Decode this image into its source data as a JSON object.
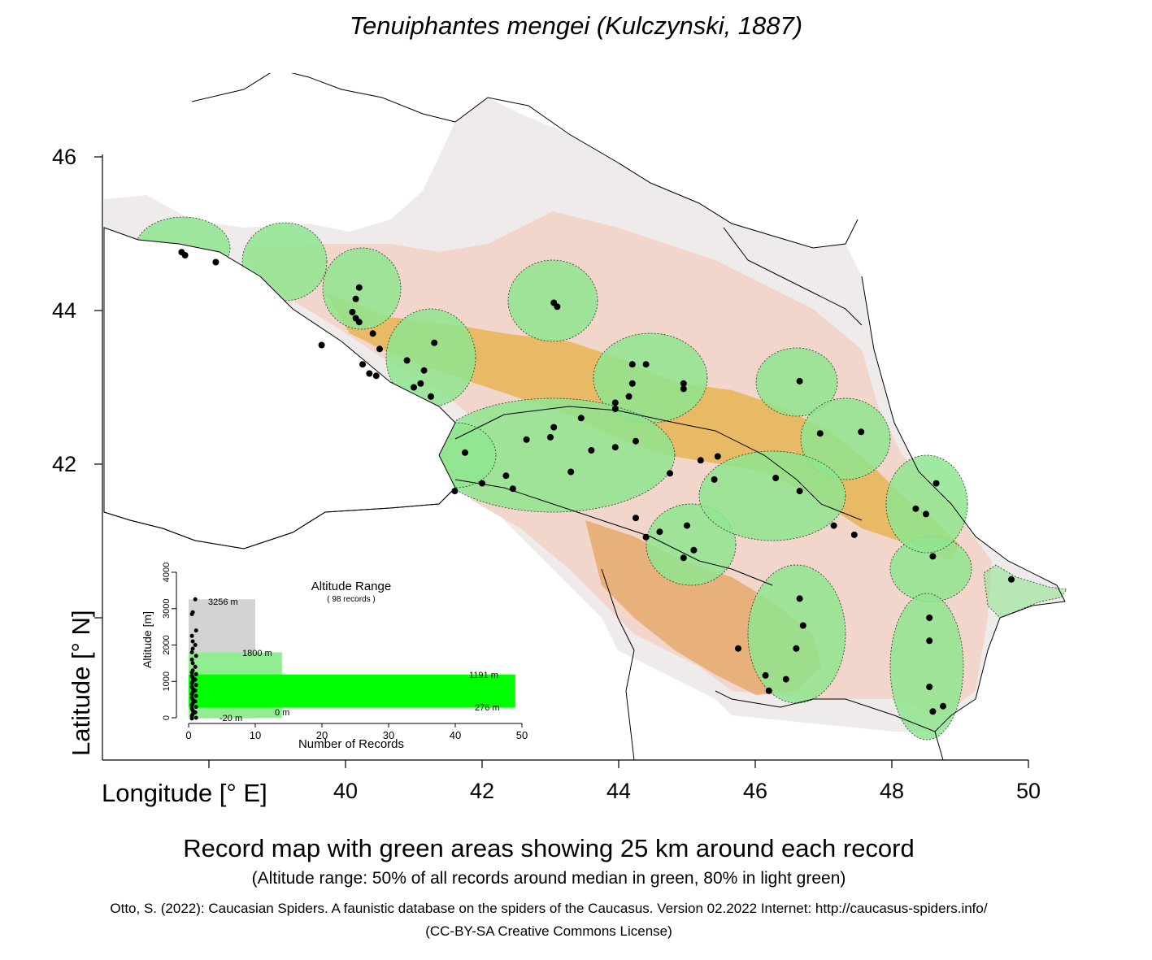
{
  "title": "Tenuiphantes mengei (Kulczynski, 1887)",
  "axes": {
    "xlabel": "Longitude [° E]",
    "ylabel": "Latitude [° N]",
    "xticks": [
      "40",
      "42",
      "44",
      "46",
      "48",
      "50"
    ],
    "yticks": [
      "46",
      "44",
      "42"
    ]
  },
  "inset": {
    "title": "Altitude Range",
    "record_count": "( 98 records )",
    "ylabel": "Altitude [m]",
    "xlabel": "Number of Records",
    "yticks": [
      "0",
      "1000",
      "2000",
      "3000",
      "4000"
    ],
    "xticks": [
      "0",
      "10",
      "20",
      "30",
      "40",
      "50"
    ],
    "labels": {
      "max": "3256  m",
      "p80_high": "1800  m",
      "p50_high": "1191  m",
      "p50_low": "276  m",
      "p80_low": "0  m",
      "min": "-20  m"
    },
    "colors": {
      "range": "#d3d3d3",
      "p80": "#90ee90",
      "p50": "#00ff00"
    }
  },
  "caption": "Record map with green areas showing 25 km around each record",
  "subcaption": "(Altitude range: 50% of all records around median in green, 80% in light green)",
  "citation": "Otto, S. (2022): Caucasian Spiders. A faunistic database on the spiders of the Caucasus. Version 02.2022 Internet: http://caucasus-spiders.info/",
  "license": "(CC-BY-SA Creative Commons License)",
  "chart_data": [
    {
      "type": "scatter",
      "title": "Tenuiphantes mengei (Kulczynski, 1887)",
      "xlabel": "Longitude [° E]",
      "ylabel": "Latitude [° N]",
      "xlim": [
        36.4,
        50.4
      ],
      "ylim": [
        38.2,
        46.9
      ],
      "series": [
        {
          "values": [
            [
              37.6,
              44.76
            ],
            [
              37.65,
              44.72
            ],
            [
              38.1,
              44.63
            ],
            [
              40.2,
              44.3
            ],
            [
              40.15,
              44.15
            ],
            [
              40.1,
              43.98
            ],
            [
              40.15,
              43.9
            ],
            [
              40.2,
              43.85
            ],
            [
              40.4,
              43.7
            ],
            [
              40.5,
              43.5
            ],
            [
              39.65,
              43.55
            ],
            [
              40.25,
              43.3
            ],
            [
              40.35,
              43.18
            ],
            [
              40.45,
              43.15
            ],
            [
              40.9,
              43.35
            ],
            [
              41.0,
              43.0
            ],
            [
              41.1,
              43.05
            ],
            [
              41.15,
              43.22
            ],
            [
              41.25,
              42.88
            ],
            [
              41.3,
              43.58
            ],
            [
              43.05,
              44.1
            ],
            [
              43.1,
              44.05
            ],
            [
              44.2,
              43.3
            ],
            [
              44.4,
              43.3
            ],
            [
              44.2,
              43.05
            ],
            [
              43.95,
              42.8
            ],
            [
              43.95,
              42.72
            ],
            [
              44.15,
              42.88
            ],
            [
              44.95,
              43.05
            ],
            [
              44.95,
              42.98
            ],
            [
              46.65,
              43.08
            ],
            [
              43.05,
              42.48
            ],
            [
              43.0,
              42.35
            ],
            [
              43.45,
              42.6
            ],
            [
              42.65,
              42.32
            ],
            [
              43.6,
              42.18
            ],
            [
              43.95,
              42.22
            ],
            [
              44.25,
              42.3
            ],
            [
              41.75,
              42.15
            ],
            [
              41.6,
              41.65
            ],
            [
              42.0,
              41.75
            ],
            [
              42.35,
              41.85
            ],
            [
              42.45,
              41.68
            ],
            [
              43.3,
              41.9
            ],
            [
              44.75,
              41.88
            ],
            [
              45.2,
              42.05
            ],
            [
              45.45,
              42.1
            ],
            [
              45.4,
              41.8
            ],
            [
              46.95,
              42.4
            ],
            [
              47.55,
              42.42
            ],
            [
              46.3,
              41.82
            ],
            [
              46.65,
              41.65
            ],
            [
              47.15,
              41.2
            ],
            [
              47.45,
              41.08
            ],
            [
              48.35,
              41.42
            ],
            [
              48.5,
              41.35
            ],
            [
              48.65,
              41.75
            ],
            [
              48.6,
              40.8
            ],
            [
              44.25,
              41.3
            ],
            [
              44.4,
              41.05
            ],
            [
              44.6,
              41.12
            ],
            [
              45.0,
              41.2
            ],
            [
              45.1,
              40.88
            ],
            [
              44.95,
              40.78
            ],
            [
              46.65,
              40.25
            ],
            [
              46.7,
              39.9
            ],
            [
              45.75,
              39.6
            ],
            [
              46.15,
              39.25
            ],
            [
              46.2,
              39.05
            ],
            [
              46.45,
              39.2
            ],
            [
              46.6,
              39.6
            ],
            [
              48.55,
              40.0
            ],
            [
              48.55,
              39.7
            ],
            [
              48.55,
              39.1
            ],
            [
              48.6,
              38.78
            ],
            [
              48.75,
              38.85
            ],
            [
              49.75,
              40.5
            ]
          ]
        }
      ]
    },
    {
      "type": "bar",
      "title": "Altitude Range",
      "xlabel": "Number of Records",
      "ylabel": "Altitude [m]",
      "xlim": [
        0,
        50
      ],
      "ylim": [
        0,
        4000
      ],
      "series": [
        {
          "name": "range",
          "low": -20,
          "high": 3256,
          "count": 10
        },
        {
          "name": "80%",
          "low": 0,
          "high": 1800,
          "count": 14
        },
        {
          "name": "50%",
          "low": 276,
          "high": 1191,
          "count": 49
        }
      ]
    }
  ]
}
